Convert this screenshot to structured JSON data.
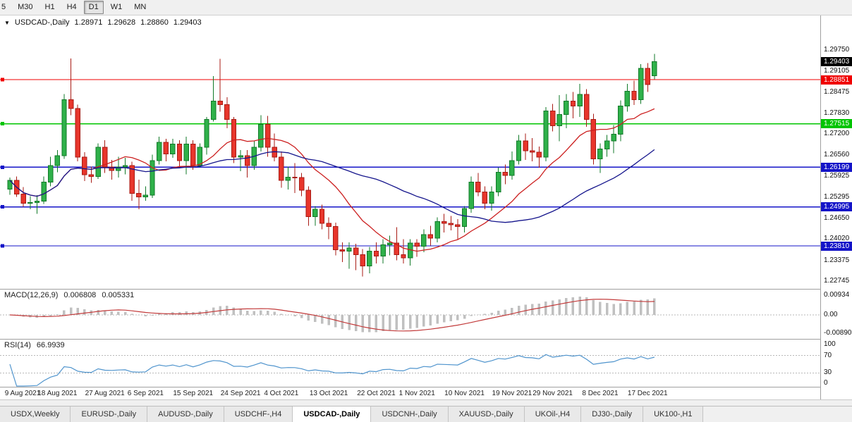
{
  "icons": {
    "dropdown": "▼"
  },
  "toolbar": {
    "timeframes": [
      {
        "label": "5",
        "clipped": true
      },
      {
        "label": "M30"
      },
      {
        "label": "H1"
      },
      {
        "label": "H4"
      },
      {
        "label": "D1",
        "active": true
      },
      {
        "label": "W1"
      },
      {
        "label": "MN"
      }
    ]
  },
  "chart_header": {
    "symbol": "USDCAD-,Daily",
    "open": "1.28971",
    "high": "1.29628",
    "low": "1.28860",
    "close": "1.29403"
  },
  "macd": {
    "title": "MACD(12,26,9)",
    "value": "0.006808",
    "signal": "0.005331",
    "axis_labels": [
      {
        "text": "0.00934",
        "value": 0.00934
      },
      {
        "text": "0.00",
        "value": 0
      },
      {
        "text": "-0.00890",
        "value": -0.0089
      }
    ]
  },
  "rsi": {
    "title": "RSI(14)",
    "value": "66.9939",
    "axis_labels": [
      {
        "text": "100",
        "value": 100
      },
      {
        "text": "70",
        "value": 70
      },
      {
        "text": "30",
        "value": 30
      },
      {
        "text": "0",
        "value": 0
      }
    ]
  },
  "tabs": [
    {
      "label": "USDX,Weekly"
    },
    {
      "label": "EURUSD-,Daily"
    },
    {
      "label": "AUDUSD-,Daily"
    },
    {
      "label": "USDCHF-,H4"
    },
    {
      "label": "USDCAD-,Daily",
      "active": true
    },
    {
      "label": "USDCNH-,Daily"
    },
    {
      "label": "XAUUSD-,Daily"
    },
    {
      "label": "UKOil-,H4"
    },
    {
      "label": "DJ30-,Daily"
    },
    {
      "label": "UK100-,H1"
    }
  ],
  "chart_data": {
    "type": "candlestick",
    "symbol": "USDCAD",
    "timeframe": "Daily",
    "current_price": 1.29403,
    "price_range": {
      "top": 1.30797,
      "bottom": 1.2251
    },
    "price_axis_labels": [
      1.2975,
      1.29105,
      1.28475,
      1.2783,
      1.272,
      1.2656,
      1.25925,
      1.25295,
      1.2465,
      1.2402,
      1.23375,
      1.22745
    ],
    "price_badges": [
      {
        "value": 1.29403,
        "color": "#000000",
        "role": "current-price"
      },
      {
        "value": 1.28851,
        "color": "#f00000",
        "role": "resistance-line"
      },
      {
        "value": 1.27515,
        "color": "#00c400",
        "role": "support-line"
      },
      {
        "value": 1.26199,
        "color": "#1414c8",
        "role": "support-line"
      },
      {
        "value": 1.24995,
        "color": "#1414c8",
        "role": "support-line"
      },
      {
        "value": 1.2381,
        "color": "#1414c8",
        "role": "support-line"
      }
    ],
    "levels": [
      {
        "value": 1.28851,
        "color": "#f00000"
      },
      {
        "value": 1.27515,
        "color": "#00c400"
      },
      {
        "value": 1.26199,
        "color": "#1414c8"
      },
      {
        "value": 1.24995,
        "color": "#1414c8"
      },
      {
        "value": 1.2381,
        "color": "#1414c8"
      }
    ],
    "moving_averages": [
      {
        "period": 13,
        "color": "#cc2020"
      },
      {
        "period": 34,
        "color": "#15158c"
      }
    ],
    "macd_params": {
      "fast": 12,
      "slow": 26,
      "signal": 9
    },
    "rsi_period": 14,
    "colors": {
      "bull": "#2fb14a",
      "bull_border": "#117a28",
      "bear": "#e8362c",
      "bear_border": "#a81b14",
      "macd_hist": "#c0c0c0",
      "macd_signal": "#c23a3a",
      "rsi": "#4f94cd",
      "grid_dash": "#b8b8b8"
    },
    "x_labels": [
      "9 Aug 2021",
      "18 Aug 2021",
      "27 Aug 2021",
      "6 Sep 2021",
      "15 Sep 2021",
      "24 Sep 2021",
      "4 Oct 2021",
      "13 Oct 2021",
      "22 Oct 2021",
      "1 Nov 2021",
      "10 Nov 2021",
      "19 Nov 2021",
      "29 Nov 2021",
      "8 Dec 2021",
      "17 Dec 2021"
    ],
    "candles": [
      [
        "9 Aug 2021",
        1.2553,
        1.2588,
        1.2536,
        1.258
      ],
      [
        "10 Aug 2021",
        1.258,
        1.2592,
        1.253,
        1.2538
      ],
      [
        "11 Aug 2021",
        1.2538,
        1.256,
        1.25,
        1.251
      ],
      [
        "12 Aug 2021",
        1.251,
        1.2532,
        1.2492,
        1.2513
      ],
      [
        "13 Aug 2021",
        1.2513,
        1.2535,
        1.2478,
        1.2517
      ],
      [
        "16 Aug 2021",
        1.2517,
        1.2592,
        1.2508,
        1.2575
      ],
      [
        "17 Aug 2021",
        1.2575,
        1.2652,
        1.2562,
        1.2625
      ],
      [
        "18 Aug 2021",
        1.2625,
        1.2672,
        1.2604,
        1.2655
      ],
      [
        "19 Aug 2021",
        1.2655,
        1.2842,
        1.2645,
        1.2825
      ],
      [
        "20 Aug 2021",
        1.2825,
        1.2949,
        1.2778,
        1.2798
      ],
      [
        "23 Aug 2021",
        1.2798,
        1.281,
        1.2638,
        1.265
      ],
      [
        "24 Aug 2021",
        1.265,
        1.2665,
        1.2578,
        1.2597
      ],
      [
        "25 Aug 2021",
        1.2597,
        1.2622,
        1.2572,
        1.2592
      ],
      [
        "26 Aug 2021",
        1.2592,
        1.2692,
        1.2584,
        1.268
      ],
      [
        "27 Aug 2021",
        1.268,
        1.2702,
        1.2602,
        1.262
      ],
      [
        "30 Aug 2021",
        1.262,
        1.2642,
        1.2582,
        1.261
      ],
      [
        "31 Aug 2021",
        1.261,
        1.2652,
        1.2588,
        1.262
      ],
      [
        "1 Sep 2021",
        1.262,
        1.2648,
        1.2598,
        1.2625
      ],
      [
        "2 Sep 2021",
        1.2625,
        1.2636,
        1.2518,
        1.254
      ],
      [
        "3 Sep 2021",
        1.254,
        1.2582,
        1.2492,
        1.253
      ],
      [
        "6 Sep 2021",
        1.253,
        1.2562,
        1.2518,
        1.2535
      ],
      [
        "7 Sep 2021",
        1.2535,
        1.2658,
        1.2526,
        1.264
      ],
      [
        "8 Sep 2021",
        1.264,
        1.2712,
        1.2628,
        1.2695
      ],
      [
        "9 Sep 2021",
        1.2695,
        1.2706,
        1.2638,
        1.266
      ],
      [
        "10 Sep 2021",
        1.266,
        1.2706,
        1.2648,
        1.269
      ],
      [
        "13 Sep 2021",
        1.269,
        1.2702,
        1.2618,
        1.264
      ],
      [
        "14 Sep 2021",
        1.264,
        1.2712,
        1.2598,
        1.269
      ],
      [
        "15 Sep 2021",
        1.269,
        1.2702,
        1.2612,
        1.2625
      ],
      [
        "16 Sep 2021",
        1.2625,
        1.2692,
        1.2618,
        1.268
      ],
      [
        "17 Sep 2021",
        1.268,
        1.2772,
        1.2658,
        1.2765
      ],
      [
        "20 Sep 2021",
        1.2765,
        1.2896,
        1.2758,
        1.282
      ],
      [
        "21 Sep 2021",
        1.282,
        1.2948,
        1.2788,
        1.281
      ],
      [
        "22 Sep 2021",
        1.281,
        1.2832,
        1.2738,
        1.2765
      ],
      [
        "23 Sep 2021",
        1.2765,
        1.2772,
        1.2632,
        1.265
      ],
      [
        "24 Sep 2021",
        1.265,
        1.2672,
        1.2608,
        1.2655
      ],
      [
        "27 Sep 2021",
        1.2655,
        1.2672,
        1.2588,
        1.2625
      ],
      [
        "28 Sep 2021",
        1.2625,
        1.2698,
        1.2612,
        1.268
      ],
      [
        "29 Sep 2021",
        1.268,
        1.2778,
        1.2668,
        1.275
      ],
      [
        "30 Sep 2021",
        1.275,
        1.2775,
        1.2652,
        1.268
      ],
      [
        "1 Oct 2021",
        1.268,
        1.2722,
        1.2638,
        1.265
      ],
      [
        "4 Oct 2021",
        1.265,
        1.2668,
        1.2558,
        1.258
      ],
      [
        "5 Oct 2021",
        1.258,
        1.2622,
        1.2552,
        1.259
      ],
      [
        "6 Oct 2021",
        1.259,
        1.2632,
        1.2542,
        1.2588
      ],
      [
        "7 Oct 2021",
        1.2588,
        1.2602,
        1.2532,
        1.255
      ],
      [
        "8 Oct 2021",
        1.255,
        1.2562,
        1.2442,
        1.247
      ],
      [
        "11 Oct 2021",
        1.247,
        1.2502,
        1.2442,
        1.2492
      ],
      [
        "12 Oct 2021",
        1.2492,
        1.2506,
        1.2432,
        1.245
      ],
      [
        "13 Oct 2021",
        1.245,
        1.2468,
        1.2402,
        1.244
      ],
      [
        "14 Oct 2021",
        1.244,
        1.2452,
        1.2352,
        1.237
      ],
      [
        "15 Oct 2021",
        1.237,
        1.2392,
        1.2332,
        1.2365
      ],
      [
        "18 Oct 2021",
        1.2365,
        1.2392,
        1.2312,
        1.2375
      ],
      [
        "19 Oct 2021",
        1.2375,
        1.2388,
        1.2308,
        1.2355
      ],
      [
        "20 Oct 2021",
        1.2355,
        1.2372,
        1.2288,
        1.232
      ],
      [
        "21 Oct 2021",
        1.232,
        1.2378,
        1.2298,
        1.2365
      ],
      [
        "22 Oct 2021",
        1.2365,
        1.2392,
        1.2328,
        1.235
      ],
      [
        "25 Oct 2021",
        1.235,
        1.2402,
        1.2328,
        1.2385
      ],
      [
        "26 Oct 2021",
        1.2385,
        1.2412,
        1.2352,
        1.239
      ],
      [
        "27 Oct 2021",
        1.239,
        1.2438,
        1.2338,
        1.2355
      ],
      [
        "28 Oct 2021",
        1.2355,
        1.2402,
        1.2328,
        1.2345
      ],
      [
        "29 Oct 2021",
        1.2345,
        1.2402,
        1.2322,
        1.239
      ],
      [
        "1 Nov 2021",
        1.239,
        1.2402,
        1.2348,
        1.238
      ],
      [
        "2 Nov 2021",
        1.238,
        1.2432,
        1.2362,
        1.2415
      ],
      [
        "3 Nov 2021",
        1.2415,
        1.2442,
        1.2382,
        1.2405
      ],
      [
        "4 Nov 2021",
        1.2405,
        1.2468,
        1.2392,
        1.2455
      ],
      [
        "5 Nov 2021",
        1.2455,
        1.2478,
        1.2422,
        1.245
      ],
      [
        "8 Nov 2021",
        1.245,
        1.2472,
        1.2428,
        1.2445
      ],
      [
        "9 Nov 2021",
        1.2445,
        1.2462,
        1.2402,
        1.244
      ],
      [
        "10 Nov 2021",
        1.244,
        1.2502,
        1.2422,
        1.2495
      ],
      [
        "11 Nov 2021",
        1.2495,
        1.2592,
        1.2482,
        1.2575
      ],
      [
        "12 Nov 2021",
        1.2575,
        1.2602,
        1.2532,
        1.2545
      ],
      [
        "15 Nov 2021",
        1.2545,
        1.2562,
        1.2492,
        1.251
      ],
      [
        "16 Nov 2021",
        1.251,
        1.2562,
        1.2488,
        1.2545
      ],
      [
        "17 Nov 2021",
        1.2545,
        1.2618,
        1.2532,
        1.2605
      ],
      [
        "18 Nov 2021",
        1.2605,
        1.2628,
        1.2568,
        1.2595
      ],
      [
        "19 Nov 2021",
        1.2595,
        1.2668,
        1.2582,
        1.264
      ],
      [
        "22 Nov 2021",
        1.264,
        1.2718,
        1.2628,
        1.27
      ],
      [
        "23 Nov 2021",
        1.27,
        1.2722,
        1.2642,
        1.267
      ],
      [
        "24 Nov 2021",
        1.267,
        1.2708,
        1.2638,
        1.2665
      ],
      [
        "25 Nov 2021",
        1.2665,
        1.2682,
        1.2618,
        1.265
      ],
      [
        "26 Nov 2021",
        1.265,
        1.2802,
        1.2638,
        1.279
      ],
      [
        "29 Nov 2021",
        1.279,
        1.2812,
        1.2728,
        1.2745
      ],
      [
        "30 Nov 2021",
        1.2745,
        1.2838,
        1.2698,
        1.278
      ],
      [
        "1 Dec 2021",
        1.278,
        1.2842,
        1.2738,
        1.282
      ],
      [
        "2 Dec 2021",
        1.282,
        1.2848,
        1.2768,
        1.2805
      ],
      [
        "3 Dec 2021",
        1.2805,
        1.2872,
        1.2772,
        1.284
      ],
      [
        "6 Dec 2021",
        1.284,
        1.2856,
        1.2742,
        1.2765
      ],
      [
        "7 Dec 2021",
        1.2765,
        1.2782,
        1.2628,
        1.2645
      ],
      [
        "8 Dec 2021",
        1.2645,
        1.2692,
        1.2602,
        1.2675
      ],
      [
        "9 Dec 2021",
        1.2675,
        1.2718,
        1.2652,
        1.27
      ],
      [
        "10 Dec 2021",
        1.27,
        1.2748,
        1.2662,
        1.272
      ],
      [
        "13 Dec 2021",
        1.272,
        1.2822,
        1.2698,
        1.2805
      ],
      [
        "14 Dec 2021",
        1.2805,
        1.2872,
        1.2788,
        1.285
      ],
      [
        "15 Dec 2021",
        1.285,
        1.2882,
        1.2808,
        1.2825
      ],
      [
        "16 Dec 2021",
        1.2825,
        1.2932,
        1.2812,
        1.292
      ],
      [
        "17 Dec 2021",
        1.292,
        1.2936,
        1.2848,
        1.287
      ],
      [
        "20 Dec 2021",
        1.28971,
        1.29628,
        1.2886,
        1.29403
      ]
    ]
  }
}
